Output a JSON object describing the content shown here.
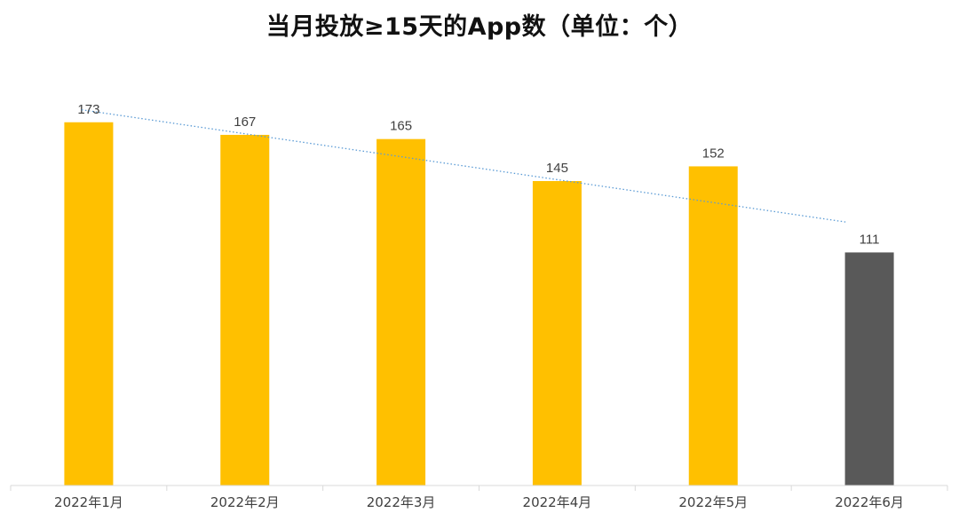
{
  "chart_data": {
    "type": "bar",
    "title": "当月投放≥15天的App数（单位：个）",
    "categories": [
      "2022年1月",
      "2022年2月",
      "2022年3月",
      "2022年4月",
      "2022年5月",
      "2022年6月"
    ],
    "values": [
      173,
      167,
      165,
      145,
      152,
      111
    ],
    "bar_colors": [
      "#FFC000",
      "#FFC000",
      "#FFC000",
      "#FFC000",
      "#FFC000",
      "#595959"
    ],
    "trendline": {
      "type": "linear",
      "color": "#5B9BD5",
      "style": "dotted"
    },
    "ylim": [
      0,
      186
    ],
    "grid": false,
    "legend": "none",
    "xlabel": "",
    "ylabel": ""
  }
}
